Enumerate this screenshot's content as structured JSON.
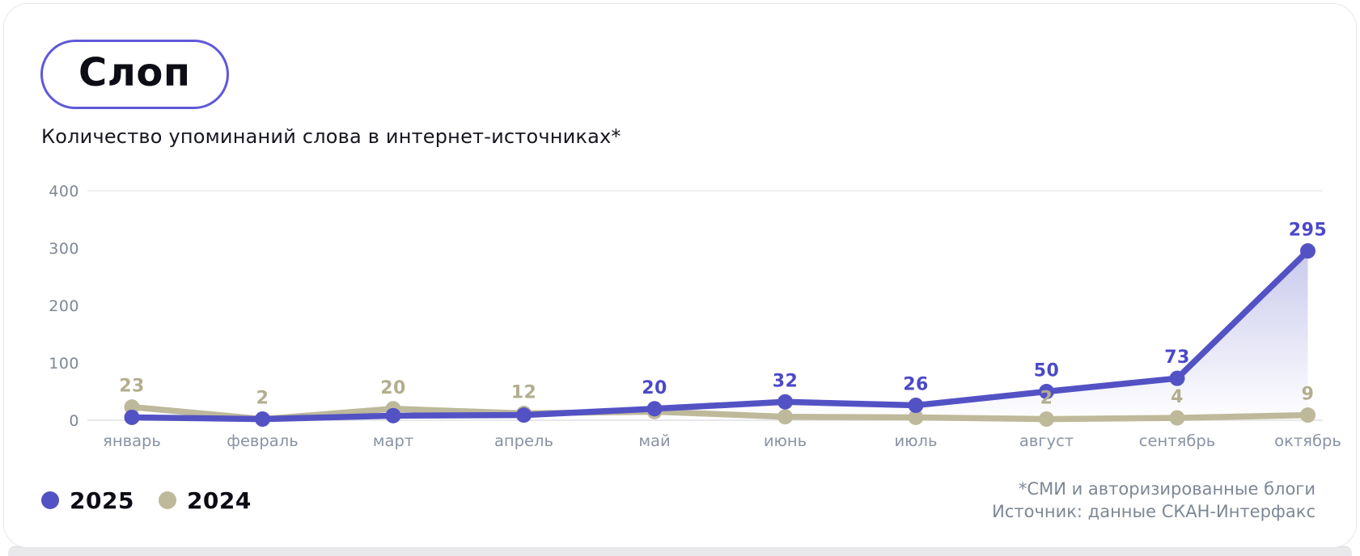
{
  "header": {
    "title": "Слоп",
    "subtitle": "Количество упоминаний слова в интернет-источниках*"
  },
  "footer": {
    "note_line1": "*СМИ и авторизированные блоги",
    "note_line2": "Источник: данные СКАН-Интерфакс"
  },
  "chart_data": {
    "type": "line",
    "title": "Слоп — количество упоминаний слова в интернет-источниках",
    "categories": [
      "январь",
      "февраль",
      "март",
      "апрель",
      "май",
      "июнь",
      "июль",
      "август",
      "сентябрь",
      "октябрь"
    ],
    "ylim": [
      0,
      400
    ],
    "y_ticks": [
      0,
      100,
      200,
      300,
      400
    ],
    "grid": "horizontal line at 400 and baseline at 0 only",
    "legend_position": "bottom-left",
    "note": "points without point_labels have no printed value in the chart; those values are estimated from pixel positions",
    "series": [
      {
        "name": "2025",
        "color": "#5352c4",
        "label_color": "#4b49c8",
        "area_gradient": true,
        "values": [
          5,
          2,
          8,
          9,
          20,
          32,
          26,
          50,
          73,
          295
        ],
        "point_labels": [
          "",
          "",
          "",
          "",
          "20",
          "32",
          "26",
          "50",
          "73",
          "295"
        ]
      },
      {
        "name": "2024",
        "color": "#bdb99a",
        "label_color": "#b2ae8e",
        "area_gradient": false,
        "values": [
          23,
          2,
          20,
          12,
          15,
          6,
          5,
          2,
          4,
          9
        ],
        "point_labels": [
          "23",
          "2",
          "20",
          "12",
          "",
          "",
          "",
          "2",
          "4",
          "9"
        ]
      }
    ]
  }
}
